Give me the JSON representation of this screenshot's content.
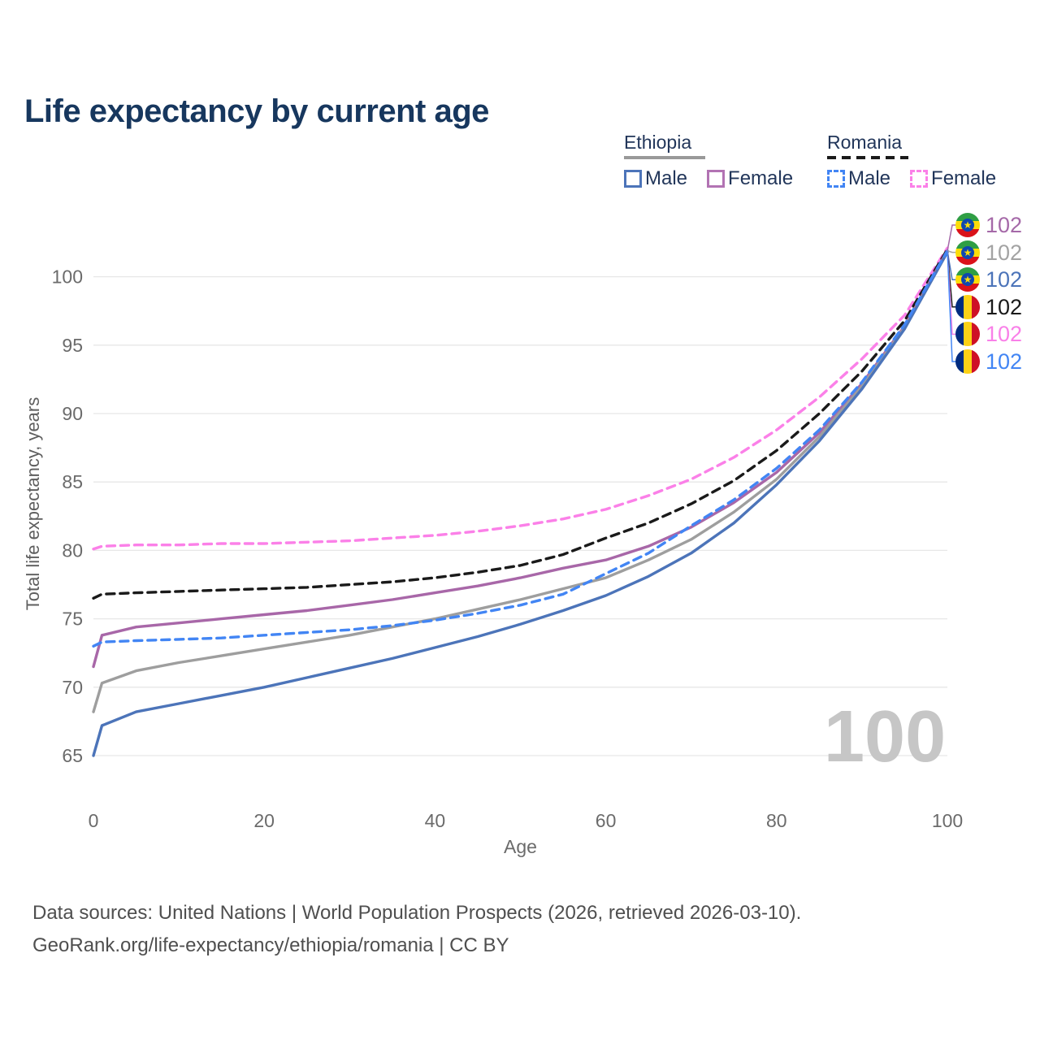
{
  "title": "Life expectancy by current age",
  "watermark": "100",
  "legend": {
    "groups": [
      {
        "name": "Ethiopia",
        "line_style": "solid",
        "underline_color": "#999999",
        "items": [
          {
            "label": "Male",
            "color": "#4C74B9"
          },
          {
            "label": "Female",
            "color": "#B273B3"
          }
        ]
      },
      {
        "name": "Romania",
        "line_style": "dashed",
        "underline_color": "#1A1A1A",
        "items": [
          {
            "label": "Male",
            "color": "#4285F4"
          },
          {
            "label": "Female",
            "color": "#FB80E8"
          }
        ]
      }
    ]
  },
  "right_labels": [
    {
      "flag": "ethiopia",
      "value": "102",
      "color": "#A569A8"
    },
    {
      "flag": "ethiopia",
      "value": "102",
      "color": "#A3A3A3"
    },
    {
      "flag": "ethiopia",
      "value": "102",
      "color": "#4C74B9"
    },
    {
      "flag": "romania",
      "value": "102",
      "color": "#1A1A1A"
    },
    {
      "flag": "romania",
      "value": "102",
      "color": "#F980E8"
    },
    {
      "flag": "romania",
      "value": "102",
      "color": "#4285F4"
    }
  ],
  "footer": {
    "line1": "Data sources: United Nations | World Population Prospects (2026, retrieved 2026-03-10).",
    "line2": "GeoRank.org/life-expectancy/ethiopia/romania | CC BY"
  },
  "chart_data": {
    "type": "line",
    "title": "Life expectancy by current age",
    "xlabel": "Age",
    "ylabel": "Total life expectancy, years",
    "xlim": [
      0,
      100
    ],
    "ylim": [
      63,
      103
    ],
    "x_ticks": [
      0,
      20,
      40,
      60,
      80,
      100
    ],
    "y_ticks": [
      65,
      70,
      75,
      80,
      85,
      90,
      95,
      100
    ],
    "grid": true,
    "legend_position": "top-right",
    "x": [
      0,
      1,
      5,
      10,
      15,
      20,
      25,
      30,
      35,
      40,
      45,
      50,
      55,
      60,
      65,
      70,
      75,
      80,
      85,
      90,
      95,
      100
    ],
    "series": [
      {
        "name": "Romania Female",
        "country": "Romania",
        "sex": "Female",
        "color": "#FB80E8",
        "dashed": true,
        "values": [
          80.1,
          80.3,
          80.4,
          80.4,
          80.5,
          80.5,
          80.6,
          80.7,
          80.9,
          81.1,
          81.4,
          81.8,
          82.3,
          83.0,
          84.0,
          85.2,
          86.8,
          88.8,
          91.2,
          94.0,
          97.2,
          102.1
        ]
      },
      {
        "name": "Romania Total",
        "country": "Romania",
        "sex": "Both",
        "color": "#1A1A1A",
        "dashed": true,
        "values": [
          76.5,
          76.8,
          76.9,
          77.0,
          77.1,
          77.2,
          77.3,
          77.5,
          77.7,
          78.0,
          78.4,
          78.9,
          79.7,
          80.9,
          82.0,
          83.4,
          85.1,
          87.3,
          90.0,
          93.1,
          96.8,
          102.0
        ]
      },
      {
        "name": "Ethiopia Female",
        "country": "Ethiopia",
        "sex": "Female",
        "color": "#A867A8",
        "dashed": false,
        "values": [
          71.5,
          73.8,
          74.4,
          74.7,
          75.0,
          75.3,
          75.6,
          76.0,
          76.4,
          76.9,
          77.4,
          78.0,
          78.7,
          79.3,
          80.3,
          81.7,
          83.5,
          85.7,
          88.6,
          92.2,
          96.4,
          101.9
        ]
      },
      {
        "name": "Ethiopia Total",
        "country": "Ethiopia",
        "sex": "Both",
        "color": "#9E9E9E",
        "dashed": false,
        "values": [
          68.2,
          70.3,
          71.2,
          71.8,
          72.3,
          72.8,
          73.3,
          73.8,
          74.4,
          75.0,
          75.7,
          76.4,
          77.2,
          78.0,
          79.3,
          80.8,
          82.8,
          85.2,
          88.3,
          92.0,
          96.3,
          101.8
        ]
      },
      {
        "name": "Ethiopia Male",
        "country": "Ethiopia",
        "sex": "Male",
        "color": "#4C74B9",
        "dashed": false,
        "values": [
          65.0,
          67.2,
          68.2,
          68.8,
          69.4,
          70.0,
          70.7,
          71.4,
          72.1,
          72.9,
          73.7,
          74.6,
          75.6,
          76.7,
          78.1,
          79.8,
          82.0,
          84.8,
          88.0,
          91.8,
          96.2,
          101.8
        ]
      },
      {
        "name": "Romania Male",
        "country": "Romania",
        "sex": "Male",
        "color": "#4285F4",
        "dashed": true,
        "values": [
          73.0,
          73.3,
          73.4,
          73.5,
          73.6,
          73.8,
          74.0,
          74.2,
          74.5,
          74.9,
          75.4,
          76.0,
          76.8,
          78.3,
          79.8,
          81.8,
          83.7,
          86.0,
          88.8,
          92.3,
          96.5,
          101.9
        ]
      }
    ]
  }
}
